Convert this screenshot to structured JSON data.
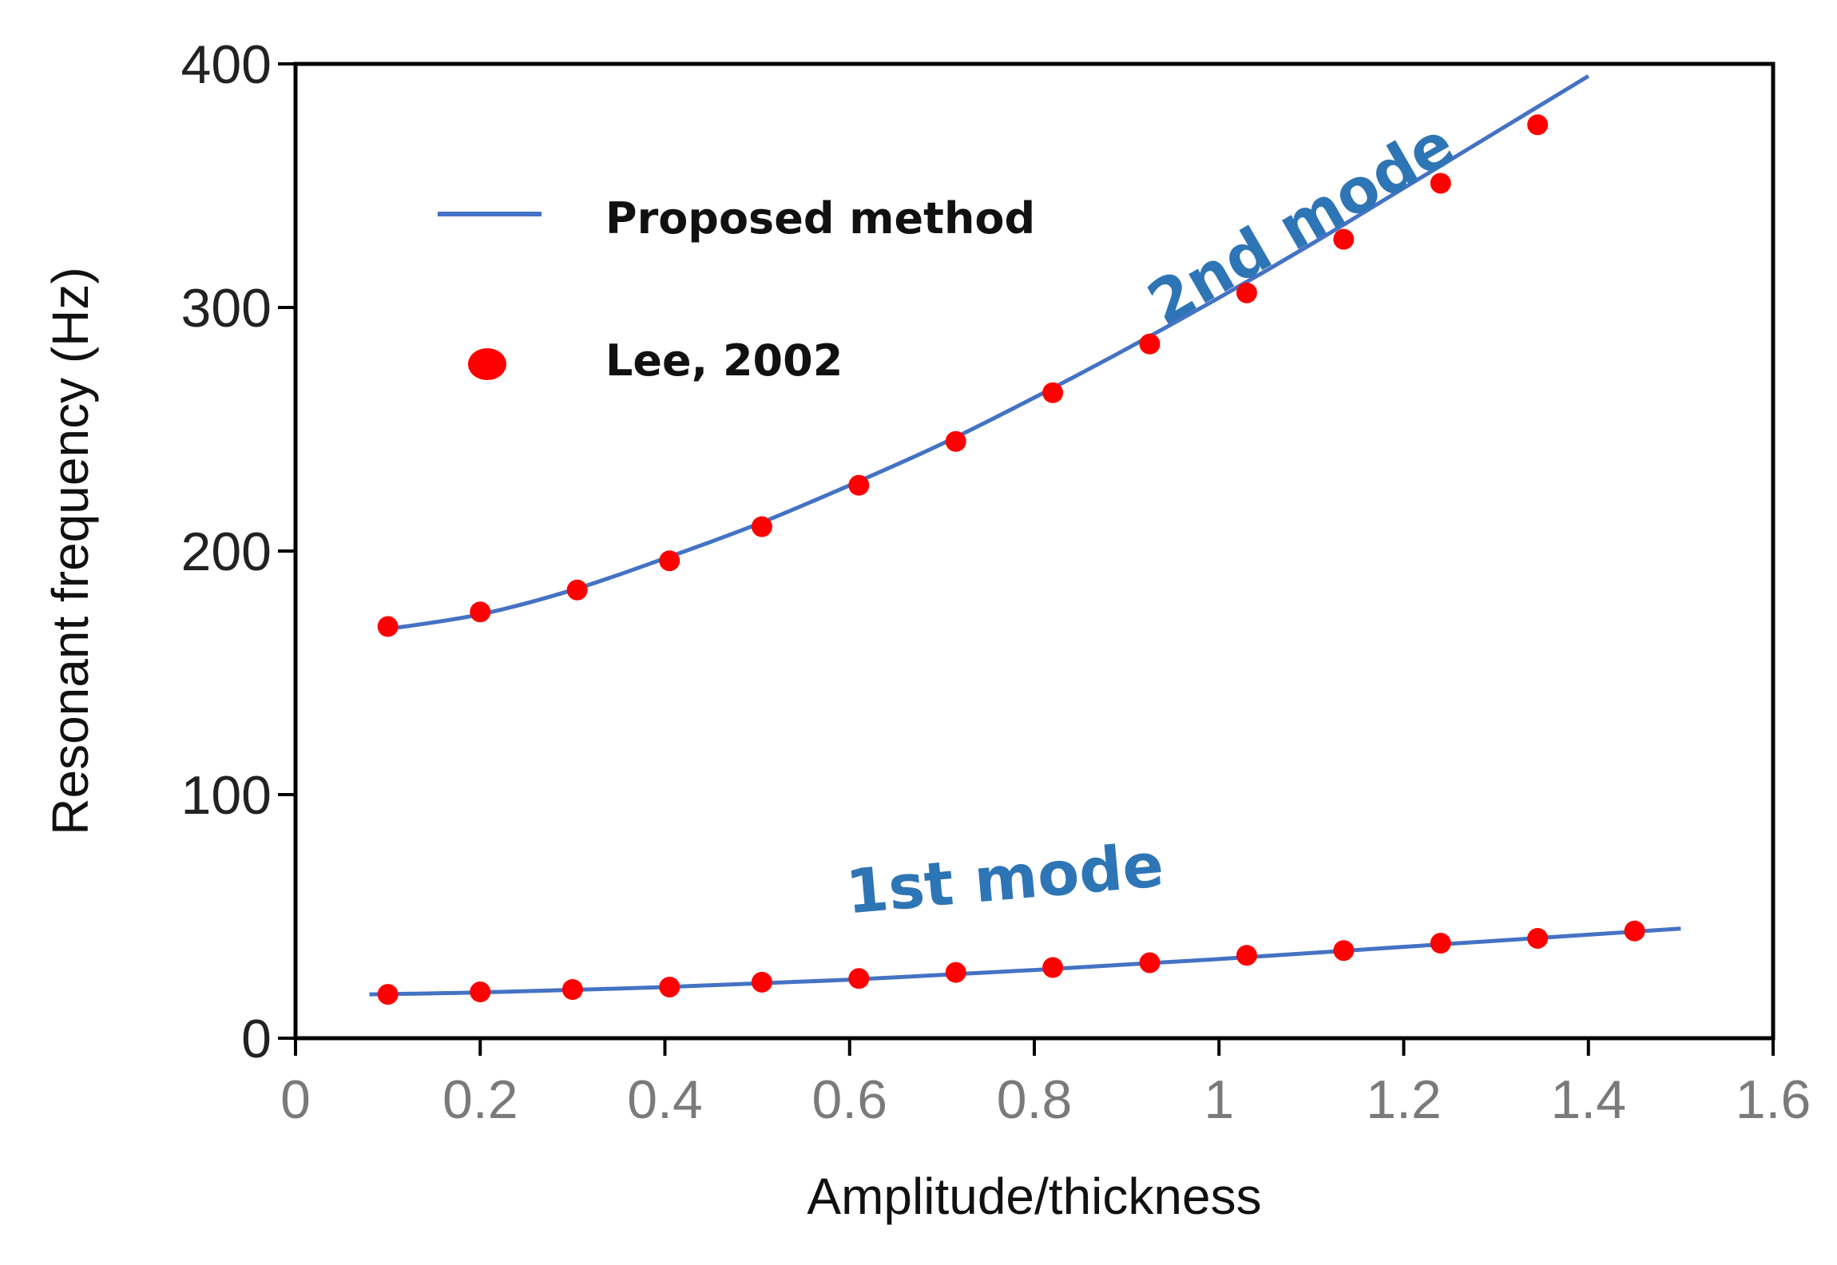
{
  "chart_data": {
    "type": "line",
    "title": "",
    "xlabel": "Amplitude/thickness",
    "ylabel": "Resonant frequency (Hz)",
    "xlim": [
      0,
      1.6
    ],
    "ylim": [
      0,
      400
    ],
    "x_ticks": [
      0,
      0.2,
      0.4,
      0.6,
      0.8,
      1,
      1.2,
      1.4,
      1.6
    ],
    "x_tick_labels": [
      "0",
      "0.2",
      "0.4",
      "0.6",
      "0.8",
      "1",
      "1.2",
      "1.4",
      "1.6"
    ],
    "y_ticks": [
      0,
      100,
      200,
      300,
      400
    ],
    "y_tick_labels": [
      "0",
      "100",
      "200",
      "300",
      "400"
    ],
    "grid": false,
    "legend_position": "top-left",
    "legend": [
      {
        "label": "Proposed method",
        "marker": "line",
        "color": "#4472C4"
      },
      {
        "label": "Lee, 2002",
        "marker": "circle",
        "color": "#FF0000"
      }
    ],
    "series": [
      {
        "name": "Proposed method (2nd mode)",
        "style": "line",
        "color": "#4472C4",
        "x": [
          0.1,
          0.2,
          0.3,
          0.4,
          0.5,
          0.6,
          0.7,
          0.8,
          0.9,
          1.0,
          1.1,
          1.2,
          1.3,
          1.4
        ],
        "y": [
          168,
          174,
          184,
          197,
          211,
          227,
          244,
          263,
          283,
          304,
          326,
          349,
          372,
          395
        ]
      },
      {
        "name": "Lee, 2002 (2nd mode)",
        "style": "scatter",
        "color": "#FF0000",
        "x": [
          0.1,
          0.2,
          0.305,
          0.405,
          0.505,
          0.61,
          0.715,
          0.82,
          0.925,
          1.03,
          1.135,
          1.24,
          1.345
        ],
        "y": [
          169,
          175,
          184,
          196,
          210,
          227,
          245,
          265,
          285,
          306,
          328,
          351,
          375
        ]
      },
      {
        "name": "Proposed method (1st mode)",
        "style": "line",
        "color": "#4472C4",
        "x": [
          0.08,
          0.2,
          0.4,
          0.6,
          0.8,
          1.0,
          1.2,
          1.4,
          1.5
        ],
        "y": [
          18,
          18.8,
          21,
          24,
          28,
          32.5,
          37.5,
          42.5,
          45
        ]
      },
      {
        "name": "Lee, 2002 (1st mode)",
        "style": "scatter",
        "color": "#FF0000",
        "x": [
          0.1,
          0.2,
          0.3,
          0.405,
          0.505,
          0.61,
          0.715,
          0.82,
          0.925,
          1.03,
          1.135,
          1.24,
          1.345,
          1.45
        ],
        "y": [
          18,
          19,
          20,
          21,
          23,
          24.5,
          27,
          29,
          31,
          34,
          36,
          39,
          41,
          44
        ]
      }
    ],
    "annotations": [
      {
        "text": "2nd mode",
        "x": 1.1,
        "y": 327,
        "angle": -30,
        "color": "#2E75B6"
      },
      {
        "text": "1st mode",
        "x": 0.77,
        "y": 57,
        "angle": -5,
        "color": "#2E75B6"
      }
    ]
  }
}
